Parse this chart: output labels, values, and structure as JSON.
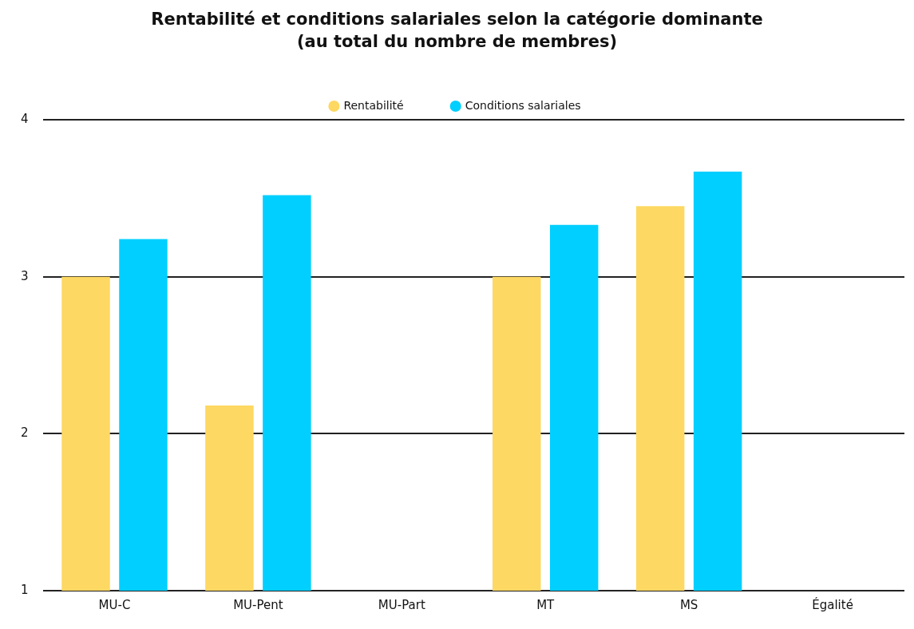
{
  "chart_data": {
    "type": "bar",
    "title": "Rentabilité et conditions salariales selon la catégorie dominante (au total du nombre de membres)",
    "categories": [
      "MU-C",
      "MU-Pent",
      "MU-Part",
      "MT",
      "MS",
      "Égalité"
    ],
    "series": [
      {
        "name": "Rentabilité",
        "color": "#fdd862",
        "values": [
          3.0,
          2.18,
          null,
          3.0,
          3.45,
          null
        ]
      },
      {
        "name": "Conditions salariales",
        "color": "#00cfff",
        "values": [
          3.24,
          3.52,
          null,
          3.33,
          3.67,
          null
        ]
      }
    ],
    "ylim": [
      1,
      4
    ],
    "yticks": [
      1,
      2,
      3,
      4
    ],
    "grid": "y",
    "legend": "top",
    "marker": "circle"
  }
}
